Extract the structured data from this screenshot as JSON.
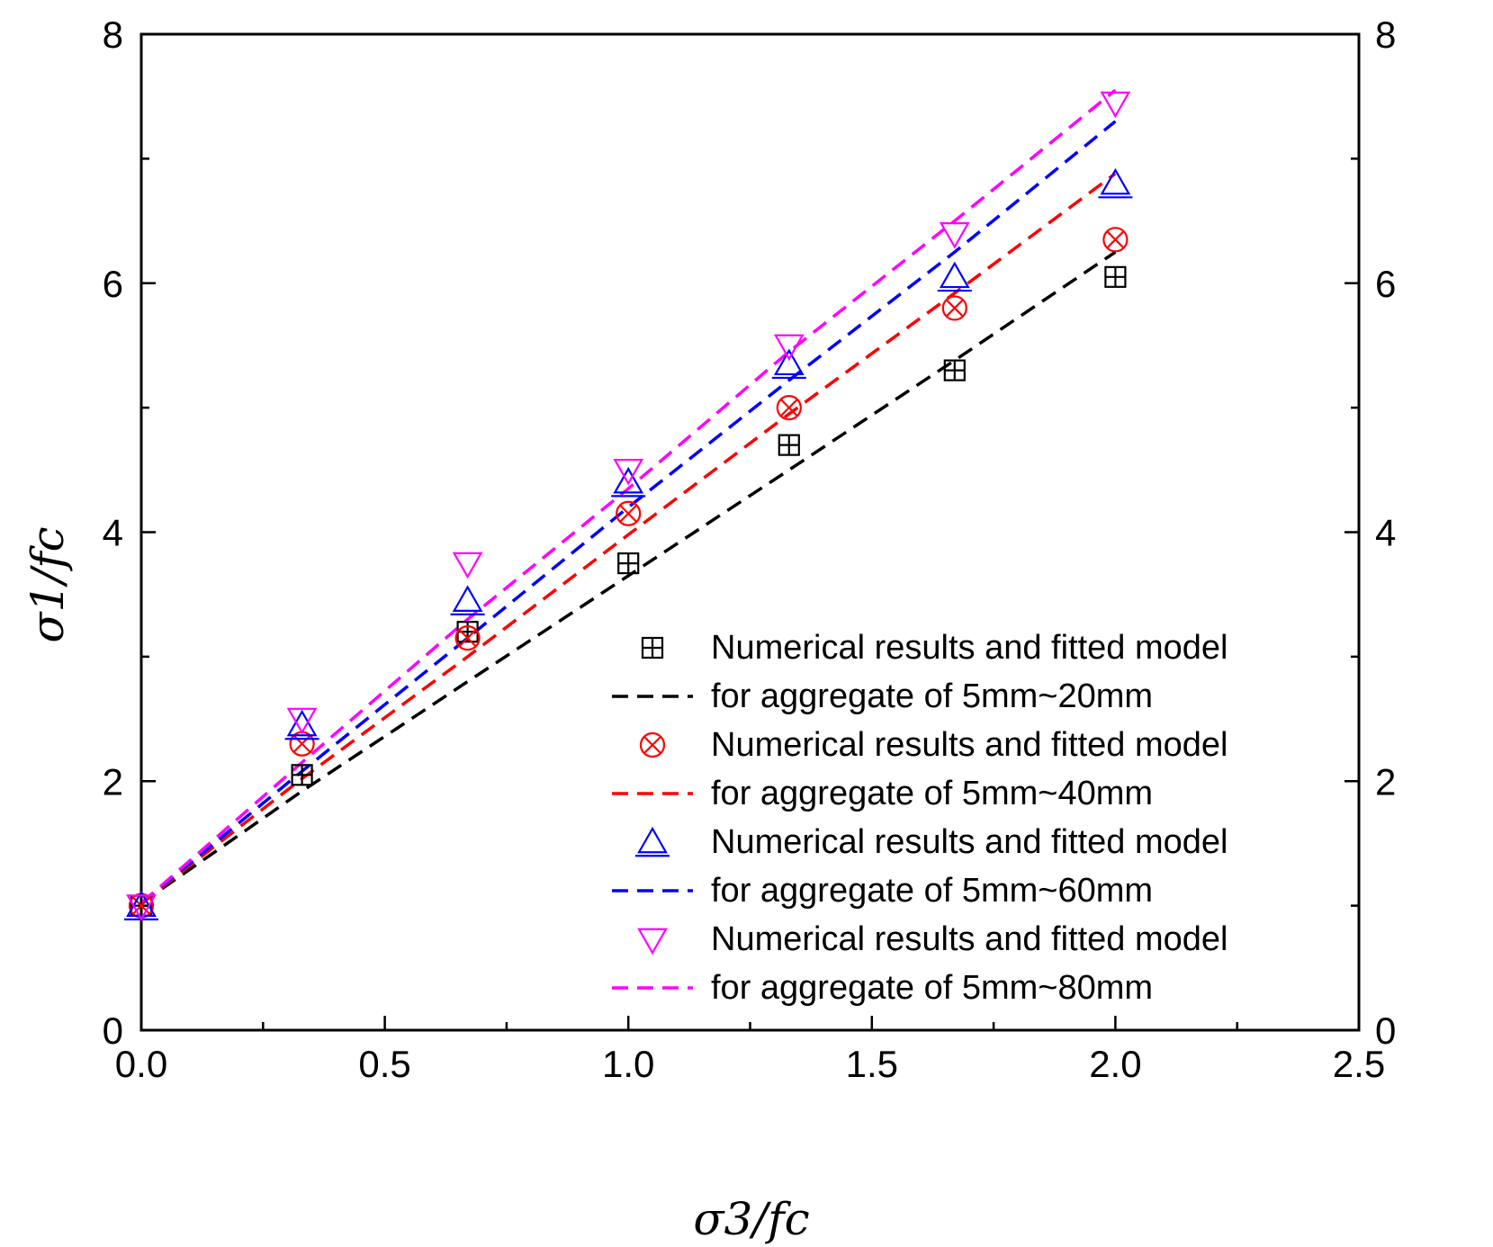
{
  "chart_data": {
    "type": "scatter",
    "xlabel": "σ3/fc",
    "ylabel": "σ1/fc",
    "xlim": [
      0,
      2.5
    ],
    "ylim": [
      0,
      8
    ],
    "xticks": [
      "0.0",
      "0.5",
      "1.0",
      "1.5",
      "2.0",
      "2.5"
    ],
    "yticks": [
      "0",
      "2",
      "4",
      "6",
      "8"
    ],
    "y2ticks": [
      "0",
      "2",
      "4",
      "6",
      "8"
    ],
    "legend_position": "bottom-right",
    "series": [
      {
        "marker_label": "Numerical results and fitted model",
        "line_label": "for aggregate of 5mm~20mm",
        "color": "#000000",
        "marker": "square-plus",
        "points": {
          "x": [
            0.0,
            0.33,
            0.67,
            1.0,
            1.33,
            1.67,
            2.0
          ],
          "y": [
            1.0,
            2.05,
            3.2,
            3.75,
            4.7,
            5.3,
            6.05
          ]
        },
        "fit": {
          "x": [
            0.0,
            0.33,
            0.67,
            1.0,
            1.33,
            1.67,
            2.0
          ],
          "y": [
            1.02,
            1.92,
            2.8,
            3.65,
            4.5,
            5.38,
            6.25
          ]
        }
      },
      {
        "marker_label": "Numerical results and fitted model",
        "line_label": "for aggregate of 5mm~40mm",
        "color": "#ff0000",
        "marker": "circle-x",
        "points": {
          "x": [
            0.0,
            0.33,
            0.67,
            1.0,
            1.33,
            1.67,
            2.0
          ],
          "y": [
            1.0,
            2.3,
            3.15,
            4.15,
            5.0,
            5.8,
            6.35
          ]
        },
        "fit": {
          "x": [
            0.0,
            0.33,
            0.67,
            1.0,
            1.33,
            1.67,
            2.0
          ],
          "y": [
            1.02,
            2.02,
            3.0,
            3.98,
            4.95,
            5.92,
            6.88
          ]
        }
      },
      {
        "marker_label": "Numerical results and fitted model",
        "line_label": "for aggregate of 5mm~60mm",
        "color": "#0000ff",
        "marker": "triangle-up",
        "points": {
          "x": [
            0.0,
            0.33,
            0.67,
            1.0,
            1.33,
            1.67,
            2.0
          ],
          "y": [
            1.0,
            2.45,
            3.45,
            4.4,
            5.35,
            6.05,
            6.8
          ]
        },
        "fit": {
          "x": [
            0.0,
            0.33,
            0.67,
            1.0,
            1.33,
            1.67,
            2.0
          ],
          "y": [
            1.02,
            2.08,
            3.15,
            4.2,
            5.22,
            6.25,
            7.3
          ]
        }
      },
      {
        "marker_label": "Numerical results and fitted model",
        "line_label": "for aggregate of 5mm~80mm",
        "color": "#ff00ff",
        "marker": "triangle-down",
        "points": {
          "x": [
            0.0,
            0.33,
            0.67,
            1.0,
            1.33,
            1.67,
            2.0
          ],
          "y": [
            1.0,
            2.5,
            3.75,
            4.5,
            5.5,
            6.4,
            7.45
          ]
        },
        "fit": {
          "x": [
            0.0,
            0.33,
            0.67,
            1.0,
            1.33,
            1.67,
            2.0
          ],
          "y": [
            1.02,
            2.15,
            3.3,
            4.35,
            5.45,
            6.5,
            7.55
          ]
        }
      }
    ]
  }
}
